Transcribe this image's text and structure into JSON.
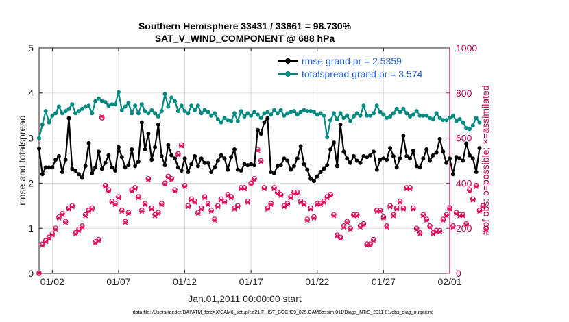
{
  "chart_data": {
    "type": "line",
    "title": "Southern Hemisphere 33431 / 33861 = 98.730%",
    "subtitle": "SAT_V_WIND_COMPONENT @ 688 hPa",
    "xlabel": "Jan.01,2011 00:00:00 start",
    "ylabel": "rmse and totalspread",
    "ylabel_right": "# of obs: o=possible; ×=assimilated",
    "footnote": "data file: /Users/raeder/DAI/ATM_forcXX/CAM6_setup/f.e21.FHIST_BGC.f09_025.CAM6assim.011/Diags_NTrS_2011-01/obs_diag_output.nc",
    "xlim": [
      0,
      31
    ],
    "ylim": [
      0,
      5
    ],
    "ylim_right": [
      0,
      1000
    ],
    "x_ticks": [
      1,
      6,
      11,
      16,
      21,
      26,
      31
    ],
    "x_tick_labels": [
      "01/02",
      "01/07",
      "01/12",
      "01/17",
      "01/22",
      "01/27",
      "02/01"
    ],
    "y_ticks": [
      0,
      1,
      2,
      3,
      4,
      5
    ],
    "y_ticks_right": [
      0,
      200,
      400,
      600,
      800,
      1000
    ],
    "grid": true,
    "legend_position": "top-right",
    "step_days": 0.25,
    "colors": {
      "rmse": "#000000",
      "totalspread": "#00897f",
      "obs": "#e0105e",
      "right_axis": "#c8004f",
      "legend_text": "#1f5fd6"
    },
    "series": [
      {
        "name": "rmse grand pr = 2.5359",
        "axis": "left",
        "values": [
          2.77,
          2.2,
          2.35,
          2.35,
          2.35,
          2.52,
          2.6,
          2.25,
          2.52,
          3.44,
          2.32,
          2.28,
          2.2,
          2.12,
          2.38,
          2.89,
          2.22,
          2.35,
          2.7,
          2.32,
          2.45,
          2.62,
          2.35,
          2.28,
          2.8,
          2.58,
          2.35,
          2.4,
          2.75,
          2.38,
          2.48,
          3.35,
          2.75,
          3.1,
          2.52,
          2.8,
          3.3,
          2.6,
          2.4,
          2.85,
          2.62,
          2.55,
          2.35,
          2.28,
          2.55,
          2.25,
          2.42,
          2.6,
          2.38,
          2.55,
          2.45,
          2.45,
          2.25,
          2.35,
          2.5,
          2.62,
          2.55,
          2.3,
          2.58,
          2.75,
          2.3,
          2.28,
          2.42,
          2.4,
          2.42,
          2.4,
          3.18,
          3.1,
          3.35,
          3.44,
          2.25,
          2.22,
          2.38,
          2.4,
          2.55,
          2.5,
          2.3,
          2.38,
          2.55,
          2.82,
          2.42,
          2.3,
          2.1,
          2.05,
          2.15,
          2.25,
          2.32,
          2.4,
          2.75,
          2.9,
          2.38,
          3.3,
          2.7,
          2.55,
          2.45,
          2.6,
          2.5,
          2.45,
          2.6,
          2.58,
          2.62,
          2.7,
          2.3,
          2.52,
          2.55,
          2.52,
          2.78,
          2.6,
          2.35,
          2.55,
          3.05,
          2.6,
          2.55,
          2.72,
          2.38,
          2.35,
          2.55,
          2.75,
          2.5,
          2.62,
          2.68,
          2.98,
          2.7,
          2.45,
          2.55,
          2.2,
          2.58,
          2.55,
          2.5,
          2.88,
          2.62,
          2.55,
          2.25,
          2.78
        ]
      },
      {
        "name": "totalspread grand pr = 3.574",
        "axis": "left",
        "values": [
          3.0,
          3.3,
          3.6,
          3.35,
          3.5,
          3.55,
          3.7,
          3.55,
          3.6,
          3.65,
          3.75,
          3.55,
          3.6,
          3.65,
          3.7,
          3.72,
          3.55,
          3.82,
          3.88,
          3.82,
          3.8,
          3.72,
          3.75,
          3.75,
          4.02,
          3.62,
          3.7,
          3.78,
          3.55,
          3.72,
          3.55,
          3.75,
          3.6,
          3.55,
          3.62,
          3.55,
          3.48,
          3.6,
          3.98,
          3.7,
          3.9,
          3.82,
          3.6,
          3.72,
          3.6,
          3.55,
          3.72,
          3.62,
          3.72,
          3.55,
          3.62,
          3.58,
          3.5,
          3.55,
          3.42,
          3.35,
          3.45,
          3.4,
          3.38,
          3.55,
          3.38,
          3.6,
          3.48,
          3.55,
          3.5,
          3.58,
          3.52,
          3.45,
          3.55,
          3.58,
          3.52,
          3.62,
          3.55,
          3.62,
          3.5,
          3.55,
          3.58,
          3.6,
          3.52,
          3.58,
          3.62,
          3.6,
          3.6,
          3.58,
          3.52,
          3.55,
          3.5,
          3.02,
          3.4,
          3.55,
          3.42,
          3.55,
          3.45,
          3.5,
          3.38,
          3.48,
          3.55,
          3.5,
          3.72,
          3.5,
          3.5,
          3.55,
          3.72,
          3.58,
          3.52,
          3.45,
          3.48,
          3.55,
          3.65,
          3.58,
          3.65,
          3.55,
          3.48,
          3.52,
          3.6,
          3.5,
          3.5,
          3.5,
          3.45,
          3.42,
          3.55,
          3.45,
          3.4,
          3.4,
          3.45,
          3.5,
          3.38,
          3.42,
          3.35,
          3.22,
          3.2,
          3.28,
          3.45,
          3.35
        ]
      },
      {
        "name": "obs possible",
        "axis": "right",
        "marker": "o",
        "values": [
          0,
          130,
          145,
          160,
          175,
          200,
          250,
          265,
          230,
          290,
          300,
          180,
          195,
          210,
          260,
          280,
          290,
          140,
          150,
          690,
          390,
          370,
          320,
          310,
          340,
          280,
          230,
          270,
          370,
          380,
          340,
          280,
          310,
          420,
          290,
          260,
          270,
          310,
          400,
          430,
          420,
          370,
          530,
          570,
          390,
          300,
          330,
          320,
          270,
          290,
          340,
          310,
          280,
          240,
          300,
          330,
          320,
          350,
          340,
          290,
          300,
          380,
          380,
          320,
          400,
          420,
          550,
          500,
          380,
          290,
          310,
          380,
          360,
          350,
          300,
          310,
          340,
          360,
          360,
          320,
          310,
          240,
          290,
          250,
          310,
          310,
          320,
          340,
          350,
          260,
          170,
          160,
          210,
          230,
          200,
          260,
          260,
          210,
          220,
          130,
          130,
          150,
          280,
          280,
          250,
          210,
          300,
          260,
          290,
          320,
          290,
          380,
          380,
          290,
          200,
          180,
          260,
          240,
          210,
          180,
          190,
          190,
          240,
          260,
          290,
          210,
          270,
          260,
          260,
          220,
          370,
          330,
          390,
          280,
          300,
          200
        ]
      },
      {
        "name": "obs assimilated",
        "axis": "right",
        "marker": "x",
        "values": [
          0,
          125,
          140,
          155,
          170,
          195,
          245,
          260,
          225,
          285,
          295,
          175,
          190,
          205,
          255,
          275,
          285,
          135,
          145,
          695,
          385,
          365,
          315,
          305,
          335,
          275,
          225,
          265,
          365,
          375,
          335,
          275,
          305,
          415,
          285,
          255,
          265,
          305,
          395,
          425,
          415,
          365,
          525,
          565,
          385,
          295,
          325,
          315,
          265,
          285,
          335,
          305,
          275,
          235,
          295,
          325,
          315,
          345,
          335,
          285,
          295,
          375,
          375,
          315,
          395,
          415,
          545,
          495,
          375,
          285,
          305,
          375,
          355,
          345,
          295,
          305,
          335,
          355,
          355,
          315,
          305,
          235,
          285,
          245,
          305,
          305,
          315,
          335,
          345,
          255,
          165,
          155,
          205,
          225,
          195,
          255,
          255,
          205,
          215,
          125,
          125,
          145,
          275,
          275,
          245,
          205,
          295,
          255,
          285,
          315,
          285,
          375,
          375,
          285,
          195,
          175,
          255,
          235,
          205,
          175,
          185,
          185,
          235,
          255,
          285,
          205,
          265,
          255,
          255,
          215,
          365,
          325,
          385,
          275,
          295,
          195
        ]
      }
    ]
  }
}
